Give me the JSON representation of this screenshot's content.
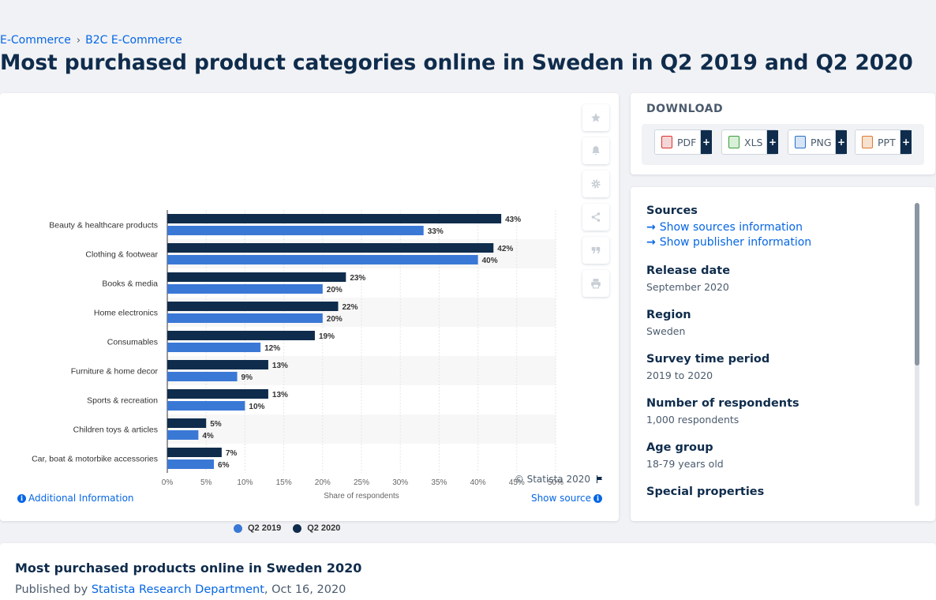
{
  "breadcrumb": {
    "items": [
      "E-Commerce",
      "B2C E-Commerce"
    ],
    "separator": "›"
  },
  "page": {
    "title": "Most purchased product categories online in Sweden in Q2 2019 and Q2 2020"
  },
  "chart_data": {
    "type": "bar",
    "orientation": "horizontal",
    "categories": [
      "Beauty & healthcare products",
      "Clothing & footwear",
      "Books & media",
      "Home electronics",
      "Consumables",
      "Furniture & home decor",
      "Sports & recreation",
      "Children toys & articles",
      "Car, boat & motorbike accessories"
    ],
    "series": [
      {
        "name": "Q2 2020",
        "color": "#0f2c4c",
        "values": [
          43,
          42,
          23,
          22,
          19,
          13,
          13,
          5,
          7
        ]
      },
      {
        "name": "Q2 2019",
        "color": "#3a78d6",
        "values": [
          33,
          40,
          20,
          20,
          12,
          9,
          10,
          4,
          6
        ]
      }
    ],
    "value_suffix": "%",
    "xlabel": "Share of respondents",
    "xticks": [
      "0%",
      "5%",
      "10%",
      "15%",
      "20%",
      "25%",
      "30%",
      "35%",
      "40%",
      "45%",
      "50%"
    ],
    "xlim": [
      0,
      50
    ],
    "legend": [
      "Q2 2019",
      "Q2 2020"
    ],
    "legend_position": "bottom",
    "grid": true
  },
  "chart_card": {
    "copyright": "© Statista 2020",
    "additional_info": "Additional Information",
    "show_source": "Show source",
    "tools": [
      "star-icon",
      "bell-icon",
      "gear-icon",
      "share-icon",
      "quote-icon",
      "print-icon"
    ]
  },
  "download": {
    "title": "DOWNLOAD",
    "buttons": [
      {
        "label": "PDF",
        "color": "#e02f2f"
      },
      {
        "label": "XLS",
        "color": "#3c9c3c"
      },
      {
        "label": "PNG",
        "color": "#2b6fc8"
      },
      {
        "label": "PPT",
        "color": "#e0772f"
      }
    ],
    "plus": "+"
  },
  "details": {
    "sources_heading": "Sources",
    "show_sources": "Show sources information",
    "show_publisher": "Show publisher information",
    "release_heading": "Release date",
    "release_value": "September 2020",
    "region_heading": "Region",
    "region_value": "Sweden",
    "survey_heading": "Survey time period",
    "survey_value": "2019 to 2020",
    "respondents_heading": "Number of respondents",
    "respondents_value": "1,000 respondents",
    "age_heading": "Age group",
    "age_value": "18-79 years old",
    "special_heading": "Special properties"
  },
  "bottom": {
    "title": "Most purchased products online in Sweden 2020",
    "published_by": "Published by",
    "publisher": "Statista Research Department",
    "date": ", Oct 16, 2020"
  }
}
